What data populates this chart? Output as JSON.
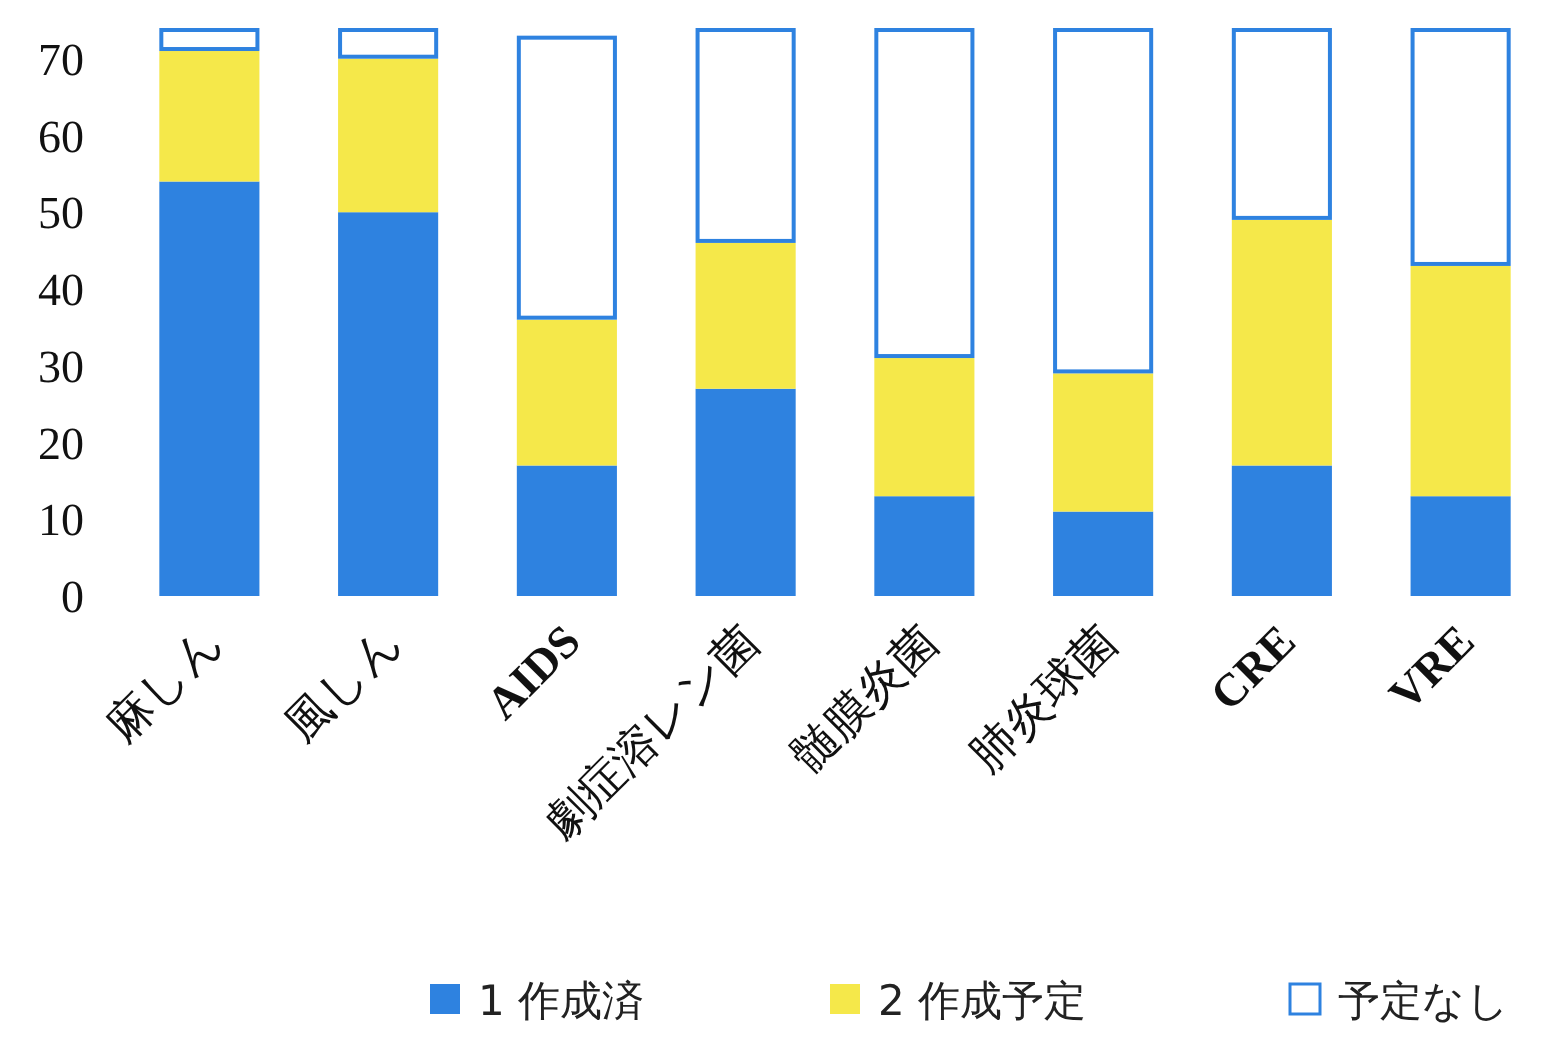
{
  "chart_data": {
    "type": "bar",
    "stacked": true,
    "categories": [
      "麻しん",
      "風しん",
      "AIDS",
      "劇症溶レン菌",
      "髄膜炎菌",
      "肺炎球菌",
      "CRE",
      "VRE"
    ],
    "series": [
      {
        "name": "1 作成済",
        "color": "#2e82e0",
        "values": [
          54,
          50,
          17,
          27,
          13,
          11,
          17,
          13
        ]
      },
      {
        "name": "2 作成予定",
        "color": "#f5e84a",
        "values": [
          17,
          20,
          19,
          19,
          18,
          18,
          32,
          30
        ]
      },
      {
        "name": "予定なし",
        "color": "#ffffff",
        "values": [
          3,
          4,
          37,
          28,
          43,
          45,
          25,
          31
        ]
      }
    ],
    "ylim": [
      0,
      74
    ],
    "yticks": [
      0,
      10,
      20,
      30,
      40,
      50,
      60,
      70
    ],
    "grid": false,
    "legend": "bottom"
  }
}
